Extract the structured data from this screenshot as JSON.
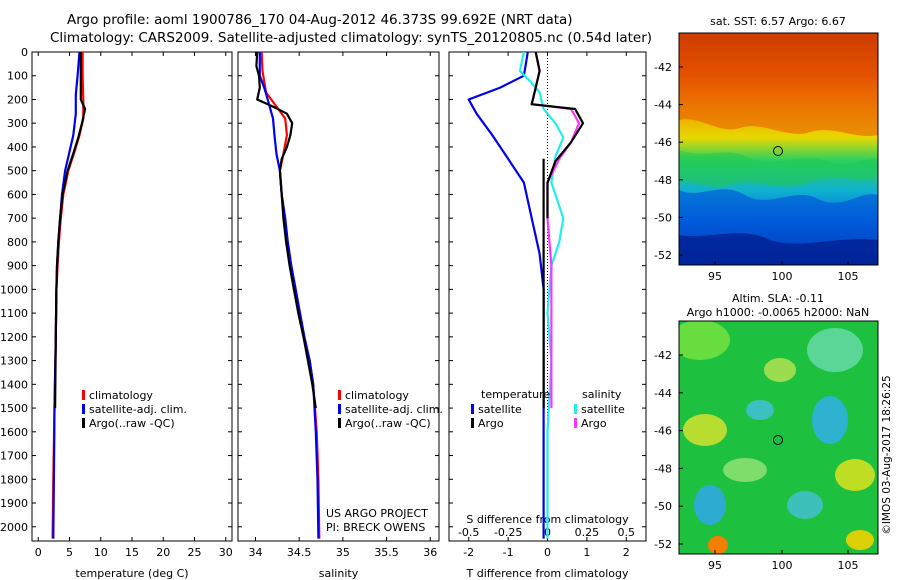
{
  "header": {
    "line1": "Argo profile: aoml 1900786_170 04-Aug-2012 46.373S 99.692E (NRT data)",
    "line2": "Climatology: CARS2009. Satellite-adjusted climatology: synTS_20120805.nc (0.54d later)"
  },
  "footer_note": {
    "line1": "US ARGO PROJECT",
    "line2": "PI: BRECK OWENS"
  },
  "side_stamp": "©IMOS 03-Aug-2017 18:26:25",
  "colors": {
    "climatology": "#ff0000",
    "satellite": "#0000ee",
    "argo": "#000000",
    "sal_satellite": "#22eeee",
    "sal_argo": "#ff33ff"
  },
  "chart_data": [
    {
      "type": "line",
      "panel": "temperature",
      "xlabel": "temperature (deg C)",
      "ylabel": "",
      "xlim": [
        -1,
        31
      ],
      "ylim": [
        2060,
        0
      ],
      "xticks": [
        "0",
        "5",
        "10",
        "15",
        "20",
        "25",
        "30"
      ],
      "yticks": [
        "0",
        "100",
        "200",
        "300",
        "400",
        "500",
        "600",
        "700",
        "800",
        "900",
        "1000",
        "1100",
        "1200",
        "1300",
        "1400",
        "1500",
        "1600",
        "1700",
        "1800",
        "1900",
        "2000"
      ],
      "legend": [
        "climatology",
        "satellite-adj. clim.",
        "Argo(..raw -QC)"
      ],
      "legend_position": "lower-right",
      "series": [
        {
          "name": "climatology",
          "color": "#ff0000",
          "points": [
            [
              7.1,
              0
            ],
            [
              7.1,
              100
            ],
            [
              7.2,
              200
            ],
            [
              7.2,
              280
            ],
            [
              6.6,
              350
            ],
            [
              5.8,
              420
            ],
            [
              4.8,
              500
            ],
            [
              4.0,
              600
            ],
            [
              3.6,
              700
            ],
            [
              3.3,
              800
            ],
            [
              3.1,
              900
            ],
            [
              2.9,
              1000
            ],
            [
              2.8,
              1200
            ],
            [
              2.6,
              1500
            ],
            [
              2.4,
              1800
            ],
            [
              2.3,
              2050
            ]
          ]
        },
        {
          "name": "satellite-adj. clim.",
          "color": "#0000ee",
          "points": [
            [
              6.6,
              0
            ],
            [
              6.3,
              100
            ],
            [
              6.0,
              180
            ],
            [
              6.0,
              260
            ],
            [
              5.6,
              350
            ],
            [
              5.0,
              420
            ],
            [
              4.3,
              500
            ],
            [
              3.8,
              600
            ],
            [
              3.5,
              700
            ],
            [
              3.2,
              800
            ],
            [
              3.0,
              900
            ],
            [
              2.9,
              1000
            ],
            [
              2.8,
              1200
            ],
            [
              2.6,
              1500
            ],
            [
              2.5,
              1800
            ],
            [
              2.4,
              2050
            ]
          ]
        },
        {
          "name": "Argo(..raw -QC)",
          "color": "#000000",
          "points": [
            [
              6.8,
              0
            ],
            [
              6.8,
              100
            ],
            [
              6.8,
              200
            ],
            [
              7.5,
              240
            ],
            [
              7.0,
              300
            ],
            [
              6.4,
              360
            ],
            [
              5.7,
              420
            ],
            [
              4.7,
              500
            ],
            [
              3.9,
              600
            ],
            [
              3.5,
              700
            ],
            [
              3.2,
              800
            ],
            [
              3.0,
              900
            ],
            [
              2.9,
              1000
            ],
            [
              2.8,
              1200
            ],
            [
              2.7,
              1500
            ]
          ]
        }
      ]
    },
    {
      "type": "line",
      "panel": "salinity",
      "xlabel": "salinity",
      "xlim": [
        33.8,
        36.1
      ],
      "ylim": [
        2060,
        0
      ],
      "xticks": [
        "34",
        "34.5",
        "35",
        "35.5",
        "36"
      ],
      "legend": [
        "climatology",
        "satellite-adj. clim.",
        "Argo(..raw -QC)"
      ],
      "legend_position": "lower-right",
      "series": [
        {
          "name": "climatology",
          "color": "#ff0000",
          "points": [
            [
              34.07,
              0
            ],
            [
              34.08,
              80
            ],
            [
              34.12,
              170
            ],
            [
              34.24,
              230
            ],
            [
              34.34,
              280
            ],
            [
              34.36,
              350
            ],
            [
              34.32,
              430
            ],
            [
              34.28,
              500
            ],
            [
              34.3,
              600
            ],
            [
              34.33,
              700
            ],
            [
              34.36,
              800
            ],
            [
              34.4,
              900
            ],
            [
              34.45,
              1000
            ],
            [
              34.5,
              1100
            ],
            [
              34.55,
              1200
            ],
            [
              34.62,
              1300
            ],
            [
              34.66,
              1400
            ],
            [
              34.7,
              1600
            ],
            [
              34.72,
              1800
            ],
            [
              34.73,
              2050
            ]
          ]
        },
        {
          "name": "satellite-adj. clim.",
          "color": "#0000ee",
          "points": [
            [
              34.05,
              0
            ],
            [
              34.05,
              100
            ],
            [
              34.1,
              150
            ],
            [
              34.14,
              200
            ],
            [
              34.2,
              280
            ],
            [
              34.22,
              360
            ],
            [
              34.24,
              430
            ],
            [
              34.28,
              500
            ],
            [
              34.3,
              600
            ],
            [
              34.34,
              700
            ],
            [
              34.37,
              800
            ],
            [
              34.41,
              900
            ],
            [
              34.46,
              1000
            ],
            [
              34.51,
              1100
            ],
            [
              34.56,
              1200
            ],
            [
              34.62,
              1300
            ],
            [
              34.66,
              1400
            ],
            [
              34.69,
              1600
            ],
            [
              34.71,
              1800
            ],
            [
              34.72,
              2050
            ]
          ]
        },
        {
          "name": "Argo(..raw -QC)",
          "color": "#000000",
          "points": [
            [
              34.02,
              0
            ],
            [
              34.01,
              60
            ],
            [
              34.04,
              100
            ],
            [
              34.05,
              150
            ],
            [
              34.02,
              200
            ],
            [
              34.2,
              230
            ],
            [
              34.36,
              260
            ],
            [
              34.42,
              300
            ],
            [
              34.4,
              350
            ],
            [
              34.36,
              400
            ],
            [
              34.3,
              450
            ],
            [
              34.28,
              500
            ],
            [
              34.3,
              600
            ],
            [
              34.32,
              700
            ],
            [
              34.35,
              800
            ],
            [
              34.39,
              900
            ],
            [
              34.44,
              1000
            ],
            [
              34.49,
              1100
            ],
            [
              34.55,
              1200
            ],
            [
              34.6,
              1300
            ],
            [
              34.65,
              1400
            ],
            [
              34.69,
              1500
            ]
          ]
        }
      ]
    },
    {
      "type": "line",
      "panel": "difference",
      "xlabel": "T difference from climatology",
      "xlabel2": "S difference from climatology",
      "xlim": [
        -2.5,
        2.5
      ],
      "ylim": [
        2060,
        0
      ],
      "xticks": [
        "-2",
        "-1",
        "0",
        "1",
        "2"
      ],
      "xticks_top": [
        "-0.5",
        "-0.25",
        "0",
        "0.25",
        "0.5"
      ],
      "legend_titles": [
        "temperature",
        "salinity"
      ],
      "legend": [
        "satellite",
        "Argo",
        "satellite",
        "Argo"
      ],
      "legend_position": "lower-center",
      "series": [
        {
          "name": "satellite",
          "group": "temperature",
          "color": "#0000ee",
          "points": [
            [
              -0.5,
              0
            ],
            [
              -0.6,
              100
            ],
            [
              -1.2,
              150
            ],
            [
              -2.0,
              200
            ],
            [
              -1.8,
              260
            ],
            [
              -1.4,
              350
            ],
            [
              -1.0,
              450
            ],
            [
              -0.6,
              550
            ],
            [
              -0.4,
              700
            ],
            [
              -0.2,
              850
            ],
            [
              -0.1,
              1000
            ],
            [
              -0.1,
              1300
            ],
            [
              -0.1,
              1600
            ],
            [
              -0.1,
              2050
            ]
          ]
        },
        {
          "name": "Argo",
          "group": "temperature",
          "color": "#000000",
          "points": [
            [
              -0.1,
              450
            ],
            [
              -0.1,
              1000
            ],
            [
              -0.1,
              1500
            ]
          ]
        },
        {
          "name": "satellite",
          "group": "salinity",
          "color": "#22eeee",
          "points": [
            [
              -0.6,
              0
            ],
            [
              -0.7,
              80
            ],
            [
              -0.4,
              130
            ],
            [
              -0.2,
              170
            ],
            [
              -0.1,
              240
            ],
            [
              0.2,
              300
            ],
            [
              0.4,
              360
            ],
            [
              0.2,
              440
            ],
            [
              0.1,
              550
            ],
            [
              0.4,
              700
            ],
            [
              0.3,
              800
            ],
            [
              0.1,
              900
            ],
            [
              0.0,
              1100
            ],
            [
              0.1,
              1300
            ],
            [
              0.0,
              1600
            ],
            [
              0.0,
              2050
            ]
          ]
        },
        {
          "name": "Argo",
          "group": "salinity",
          "color": "#ff33ff",
          "points": [
            [
              -0.3,
              0
            ],
            [
              -0.2,
              80
            ],
            [
              -0.3,
              150
            ],
            [
              -0.4,
              220
            ],
            [
              0.6,
              240
            ],
            [
              0.8,
              300
            ],
            [
              0.6,
              380
            ],
            [
              0.3,
              450
            ],
            [
              0.0,
              550
            ],
            [
              0.0,
              700
            ],
            [
              0.1,
              900
            ],
            [
              0.1,
              1100
            ],
            [
              0.1,
              1300
            ],
            [
              0.1,
              1500
            ]
          ]
        },
        {
          "name": "Argo (black)",
          "group": "salinity",
          "color": "#000000",
          "points": [
            [
              -0.3,
              0
            ],
            [
              -0.2,
              80
            ],
            [
              -0.3,
              150
            ],
            [
              -0.4,
              220
            ],
            [
              0.7,
              240
            ],
            [
              0.9,
              300
            ],
            [
              0.6,
              380
            ],
            [
              0.2,
              460
            ],
            [
              0.0,
              550
            ],
            [
              0.0,
              700
            ]
          ]
        }
      ]
    },
    {
      "type": "heatmap",
      "panel": "sst_map",
      "title": "sat. SST: 6.57 Argo: 6.67",
      "xticks": [
        "95",
        "100",
        "105"
      ],
      "yticks": [
        "-42",
        "-44",
        "-46",
        "-48",
        "-50",
        "-52"
      ],
      "marker": {
        "lon": 99.7,
        "lat": -46.4
      }
    },
    {
      "type": "heatmap",
      "panel": "sla_map",
      "title_line1": "Altim. SLA: -0.11",
      "title_line2": "Argo h1000: -0.0065 h2000: NaN",
      "xticks": [
        "95",
        "100",
        "105"
      ],
      "yticks": [
        "-42",
        "-44",
        "-46",
        "-48",
        "-50",
        "-52"
      ],
      "marker": {
        "lon": 99.7,
        "lat": -46.4
      }
    }
  ]
}
